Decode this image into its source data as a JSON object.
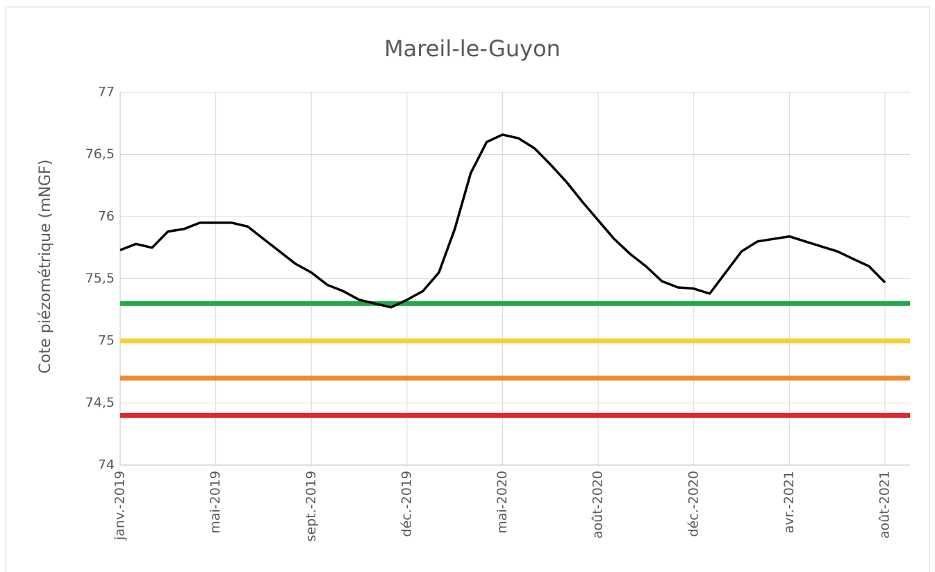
{
  "chart_data": {
    "type": "line",
    "title": "Mareil-le-Guyon",
    "y_label": "Cote piézométrique (mNGF)",
    "categories": [
      "janv.-2019",
      null,
      null,
      null,
      null,
      null,
      "mai-2019",
      null,
      null,
      null,
      null,
      null,
      "sept.-2019",
      null,
      null,
      null,
      null,
      null,
      "déc.-2019",
      null,
      null,
      null,
      null,
      null,
      "mai-2020",
      null,
      null,
      null,
      null,
      null,
      "août-2020",
      null,
      null,
      null,
      null,
      null,
      "déc.-2020",
      null,
      null,
      null,
      null,
      null,
      "avr.-2021",
      null,
      null,
      null,
      null,
      null,
      "août-2021"
    ],
    "series": [
      {
        "color": "#000000",
        "values": [
          75.73,
          75.78,
          75.75,
          75.88,
          75.9,
          75.95,
          75.95,
          75.95,
          75.92,
          75.82,
          75.72,
          75.62,
          75.55,
          75.45,
          75.4,
          75.33,
          75.3,
          75.27,
          75.33,
          75.4,
          75.55,
          75.9,
          76.35,
          76.6,
          76.66,
          76.63,
          76.55,
          76.42,
          76.28,
          76.12,
          75.97,
          75.82,
          75.7,
          75.6,
          75.48,
          75.43,
          75.42,
          75.38,
          75.55,
          75.72,
          75.8,
          75.82,
          75.84,
          75.8,
          75.76,
          75.72,
          75.66,
          75.6,
          75.47
        ]
      }
    ],
    "thresholds": [
      {
        "value": 75.3,
        "color": "#1fa84a"
      },
      {
        "value": 75,
        "color": "#f7d038"
      },
      {
        "value": 74.7,
        "color": "#ee8a2d"
      },
      {
        "value": 74.4,
        "color": "#e3262a"
      }
    ],
    "ylim": [
      74,
      77
    ],
    "yticks": [
      74,
      {
        "value": 74.5,
        "label": "74,5"
      },
      75,
      {
        "value": 75.5,
        "label": "75,5"
      },
      76,
      {
        "value": 76.5,
        "label": "76,5"
      },
      77
    ],
    "grid": true
  }
}
